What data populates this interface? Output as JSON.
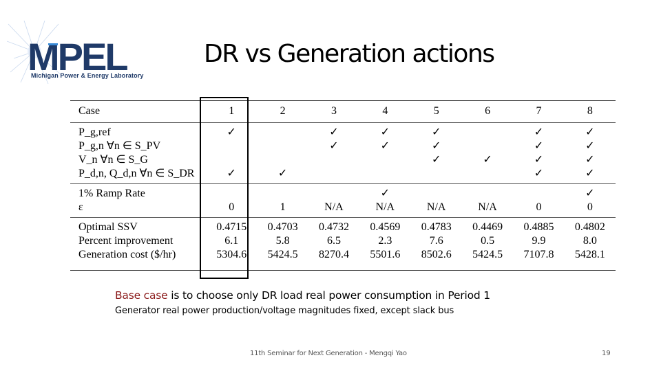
{
  "logo": {
    "text": "MPEL",
    "subtitle": "Michigan Power & Energy Laboratory"
  },
  "title": "DR vs Generation actions",
  "table": {
    "headers": [
      "Case",
      "1",
      "2",
      "3",
      "4",
      "5",
      "6",
      "7",
      "8"
    ],
    "groups": [
      [
        {
          "label": "P_g,ref",
          "cells": [
            "✓",
            "",
            "✓",
            "✓",
            "✓",
            "",
            "✓",
            "✓"
          ]
        },
        {
          "label": "P_g,n ∀n ∈ S_PV",
          "cells": [
            "",
            "",
            "✓",
            "✓",
            "✓",
            "",
            "✓",
            "✓"
          ]
        },
        {
          "label": "V_n ∀n ∈ S_G",
          "cells": [
            "",
            "",
            "",
            "",
            "✓",
            "✓",
            "✓",
            "✓"
          ]
        },
        {
          "label": "P_d,n, Q_d,n ∀n ∈ S_DR",
          "cells": [
            "✓",
            "✓",
            "",
            "",
            "",
            "",
            "✓",
            "✓"
          ]
        }
      ],
      [
        {
          "label": "1% Ramp Rate",
          "cells": [
            "",
            "",
            "",
            "✓",
            "",
            "",
            "",
            "✓"
          ]
        },
        {
          "label": "ε",
          "cells": [
            "0",
            "1",
            "N/A",
            "N/A",
            "N/A",
            "N/A",
            "0",
            "0"
          ]
        }
      ],
      [
        {
          "label": "Optimal SSV",
          "cells": [
            "0.4715",
            "0.4703",
            "0.4732",
            "0.4569",
            "0.4783",
            "0.4469",
            "0.4885",
            "0.4802"
          ]
        },
        {
          "label": "Percent improvement",
          "cells": [
            "6.1",
            "5.8",
            "6.5",
            "2.3",
            "7.6",
            "0.5",
            "9.9",
            "8.0"
          ]
        },
        {
          "label": "Generation cost ($/hr)",
          "cells": [
            "5304.6",
            "5424.5",
            "8270.4",
            "5501.6",
            "8502.6",
            "5424.5",
            "7107.8",
            "5428.1"
          ]
        }
      ]
    ]
  },
  "note": {
    "highlight": "Base case",
    "rest": " is to choose only DR load real power consumption in Period 1",
    "line2": "Generator real power production/voltage magnitudes fixed, except slack bus"
  },
  "footer": "11th Seminar for Next Generation - Mengqi Yao",
  "page_number": "19",
  "colors": {
    "logo_dark": "#1f3a68",
    "logo_light": "#3a8ad6",
    "highlight_text": "#8b1a1a"
  }
}
